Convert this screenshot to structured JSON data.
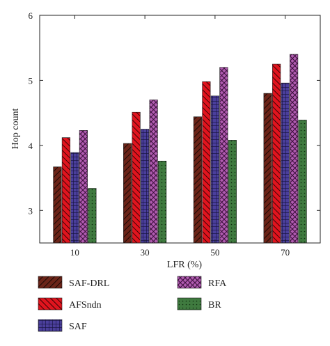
{
  "chart_data": {
    "type": "bar",
    "title": "",
    "xlabel": "LFR (%)",
    "ylabel": "Hop count",
    "categories": [
      "10",
      "30",
      "50",
      "70"
    ],
    "ylim": [
      2.5,
      6
    ],
    "yticks": [
      3,
      4,
      5,
      6
    ],
    "grid": false,
    "legend_position": "bottom",
    "series": [
      {
        "name": "SAF-DRL",
        "values": [
          3.67,
          4.03,
          4.44,
          4.8
        ],
        "color": "#6b2418",
        "pattern": "diagonal-stripes"
      },
      {
        "name": "AFSndn",
        "values": [
          4.12,
          4.51,
          4.98,
          5.25
        ],
        "color": "#e0141e",
        "pattern": "back-diagonal-stripes"
      },
      {
        "name": "SAF",
        "values": [
          3.89,
          4.25,
          4.76,
          4.96
        ],
        "color": "#4b3f9c",
        "pattern": "grid"
      },
      {
        "name": "RFA",
        "values": [
          4.23,
          4.7,
          5.2,
          5.4
        ],
        "color": "#b05bb0",
        "pattern": "crosshatch"
      },
      {
        "name": "BR",
        "values": [
          3.34,
          3.76,
          4.08,
          4.39
        ],
        "color": "#3f7a3f",
        "pattern": "dots"
      }
    ]
  }
}
